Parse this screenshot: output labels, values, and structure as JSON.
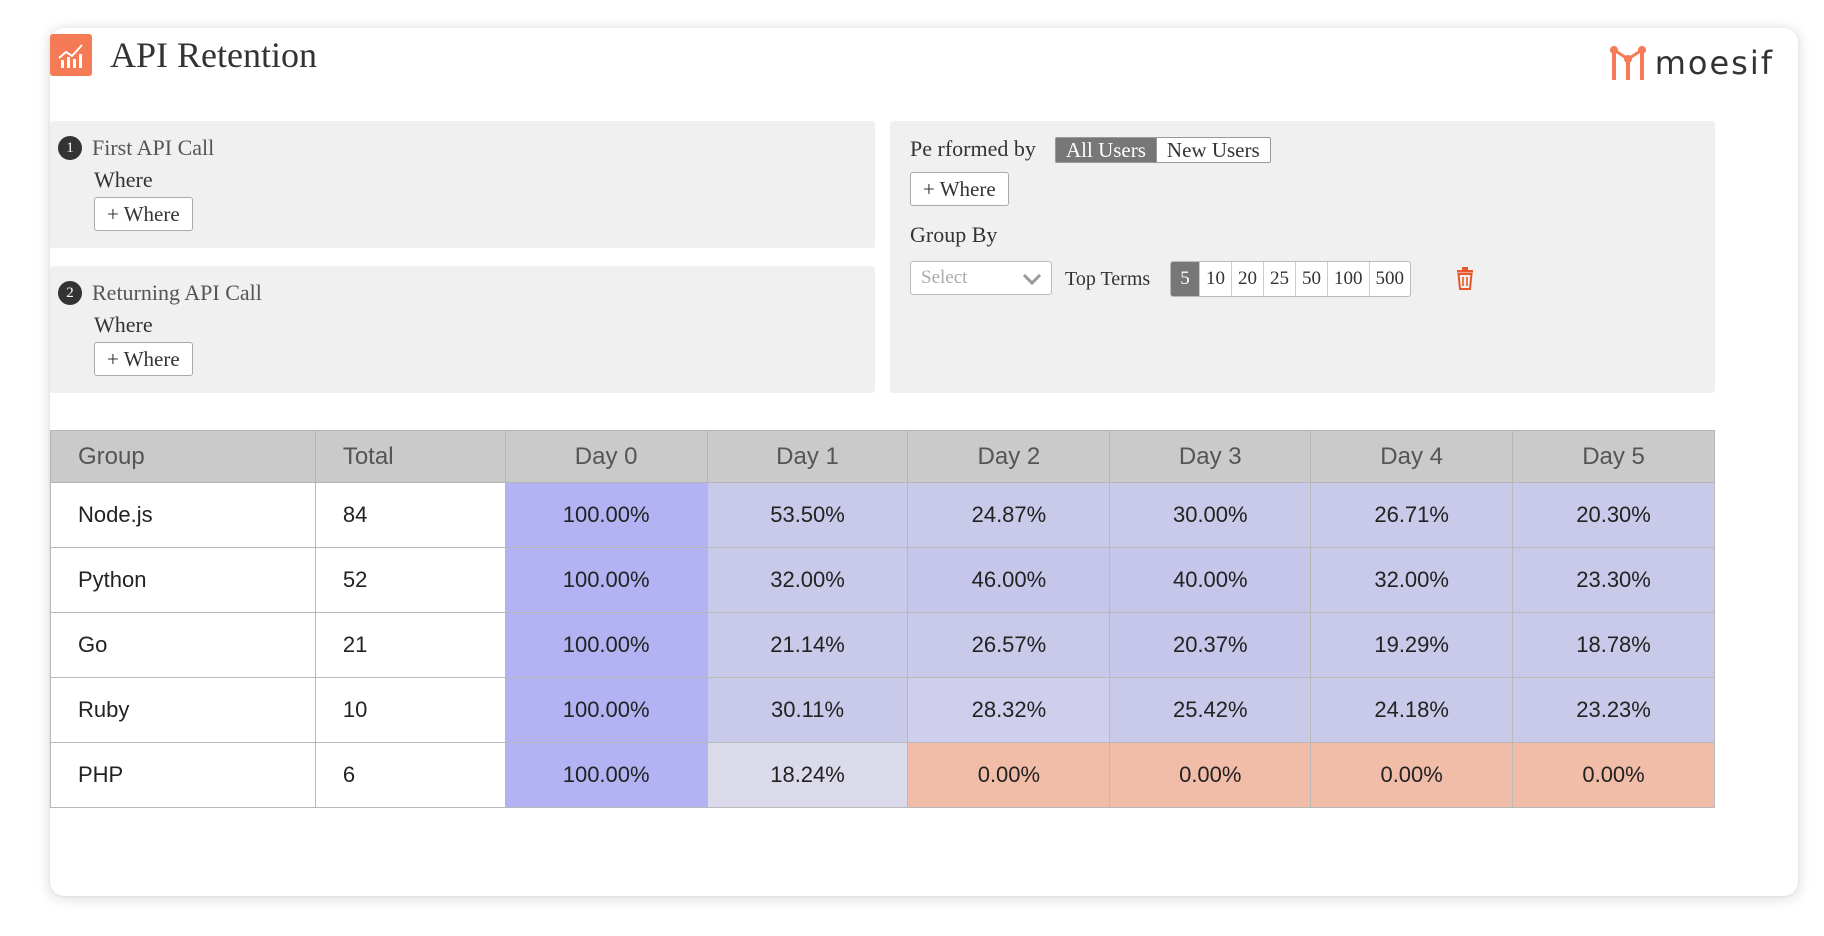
{
  "header": {
    "title": "API Retention"
  },
  "logo": {
    "text": "moesif"
  },
  "steps": [
    {
      "number": "1",
      "label": "First API Call",
      "where_label": "Where",
      "where_button": "+ Where"
    },
    {
      "number": "2",
      "label": "Returning API Call",
      "where_label": "Where",
      "where_button": "+ Where"
    }
  ],
  "filter": {
    "performed_by_label": "Pe rformed by",
    "toggle": [
      "All Users",
      "New Users"
    ],
    "selected_toggle": "All Users",
    "where_button": "+ Where",
    "group_by_label": "Group By",
    "select_placeholder": "Select",
    "top_terms_label": "Top  Terms",
    "terms": [
      "5",
      "10",
      "20",
      "25",
      "50",
      "100",
      "500"
    ],
    "selected_term": "5",
    "delete_icon": "trash-icon"
  },
  "table": {
    "columns": [
      "Group",
      "Total",
      "Day 0",
      "Day 1",
      "Day 2",
      "Day 3",
      "Day 4",
      "Day 5"
    ],
    "rows": [
      {
        "group": "Node.js",
        "total": "84",
        "days": [
          "100.00%",
          "53.50%",
          "24.87%",
          "30.00%",
          "26.71%",
          "20.30%"
        ]
      },
      {
        "group": "Python",
        "total": "52",
        "days": [
          "100.00%",
          "32.00%",
          "46.00%",
          "40.00%",
          "32.00%",
          "23.30%"
        ]
      },
      {
        "group": "Go",
        "total": "21",
        "days": [
          "100.00%",
          "21.14%",
          "26.57%",
          "20.37%",
          "19.29%",
          "18.78%"
        ]
      },
      {
        "group": "Ruby",
        "total": "10",
        "days": [
          "100.00%",
          "30.11%",
          "28.32%",
          "25.42%",
          "24.18%",
          "23.23%"
        ]
      },
      {
        "group": "PHP",
        "total": "6",
        "days": [
          "100.00%",
          "18.24%",
          "0.00%",
          "0.00%",
          "0.00%",
          "0.00%"
        ]
      }
    ],
    "cell_colors": [
      [
        "#b3b3f3",
        "#c9c9e9",
        "#c9c9e9",
        "#c9c9e9",
        "#c9c9e9",
        "#c9c9e9"
      ],
      [
        "#b3b3f3",
        "#c9c9e9",
        "#c6c6ea",
        "#c6c6ea",
        "#c9c9e9",
        "#c9c9e9"
      ],
      [
        "#b3b3f3",
        "#c9c9e9",
        "#c9c9e9",
        "#c6c6ea",
        "#c9c9e9",
        "#c9c9e9"
      ],
      [
        "#b3b3f3",
        "#c9c9e9",
        "#cfcfed",
        "#c9c9e9",
        "#c9c9e9",
        "#c9c9e9"
      ],
      [
        "#b3b3f3",
        "#dadaea",
        "#f1bca8",
        "#f1bca8",
        "#f1bca8",
        "#f1bca8"
      ]
    ]
  },
  "colors": {
    "accent": "#f47b55",
    "day0": "#b3b3f3",
    "zero": "#f1bca8"
  }
}
